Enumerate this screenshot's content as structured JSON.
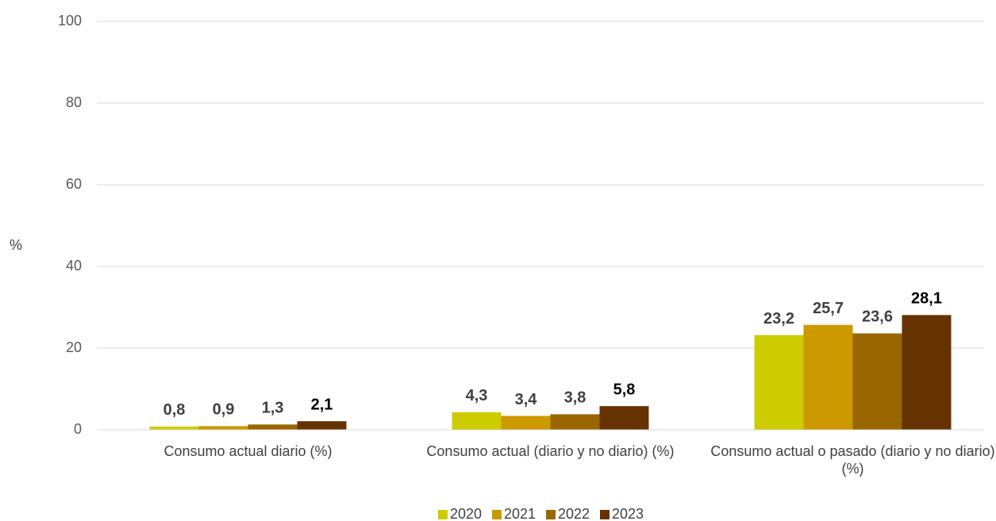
{
  "chart_data": {
    "type": "bar",
    "y_label": "%",
    "categories": [
      "Consumo actual diario (%)",
      "Consumo actual (diario y no diario) (%)",
      "Consumo actual o pasado (diario y no diario) (%)"
    ],
    "series": [
      {
        "name": "2020",
        "color": "#cccc00",
        "label_color": "#404040",
        "values": [
          0.8,
          4.3,
          23.2
        ],
        "value_labels": [
          "0,8",
          "4,3",
          "23,2"
        ]
      },
      {
        "name": "2021",
        "color": "#cc9900",
        "label_color": "#404040",
        "values": [
          0.9,
          3.4,
          25.7
        ],
        "value_labels": [
          "0,9",
          "3,4",
          "25,7"
        ]
      },
      {
        "name": "2022",
        "color": "#996600",
        "label_color": "#404040",
        "values": [
          1.3,
          3.8,
          23.6
        ],
        "value_labels": [
          "1,3",
          "3,8",
          "23,6"
        ]
      },
      {
        "name": "2023",
        "color": "#663300",
        "label_color": "#000000",
        "values": [
          2.1,
          5.8,
          28.1
        ],
        "value_labels": [
          "2,1",
          "5,8",
          "28,1"
        ]
      }
    ],
    "ylim": [
      0,
      100
    ],
    "yticks": [
      0,
      20,
      40,
      60,
      80,
      100
    ],
    "grid": true,
    "legend": "bottom"
  }
}
